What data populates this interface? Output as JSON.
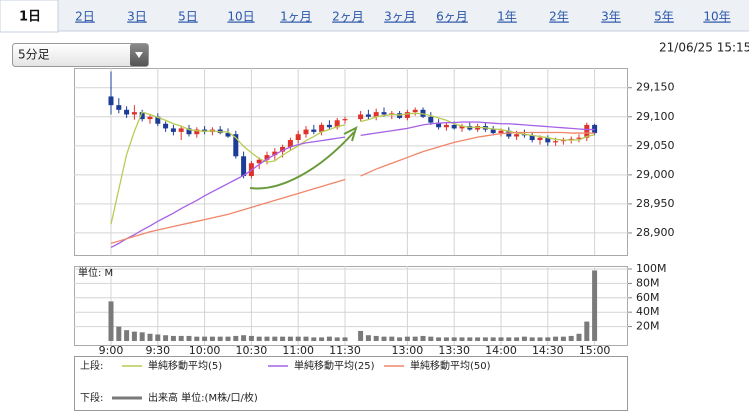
{
  "tabs": [
    "1日",
    "2日",
    "3日",
    "5日",
    "10日",
    "1ヶ月",
    "2ヶ月",
    "3ヶ月",
    "6ヶ月",
    "1年",
    "2年",
    "3年",
    "5年",
    "10年"
  ],
  "selected_tab": 0,
  "interval": "5分足",
  "timestamp": "21/06/25 15:15",
  "legend": {
    "upper_label": "上段:",
    "lower_label": "下段:"
  },
  "chart_data": [
    {
      "type": "candlestick",
      "categories": [
        "9:00",
        null,
        null,
        null,
        null,
        null,
        "9:30",
        null,
        null,
        null,
        null,
        null,
        "10:00",
        null,
        null,
        null,
        null,
        null,
        "10:30",
        null,
        null,
        null,
        null,
        null,
        "11:00",
        null,
        null,
        null,
        null,
        null,
        "11:30",
        null,
        null,
        null,
        null,
        null,
        null,
        null,
        "13:00",
        null,
        null,
        null,
        null,
        null,
        "13:30",
        null,
        null,
        null,
        null,
        null,
        "14:00",
        null,
        null,
        null,
        null,
        null,
        "14:30",
        null,
        null,
        null,
        null,
        null,
        "15:00"
      ],
      "open": [
        29135,
        29120,
        29112,
        29104,
        29108,
        29096,
        29100,
        29088,
        29080,
        29074,
        29080,
        29070,
        29078,
        29074,
        29078,
        29072,
        29070,
        29032,
        28998,
        29020,
        29026,
        29034,
        29040,
        29048,
        29060,
        29070,
        29078,
        29074,
        29086,
        29082,
        29094,
        null,
        29096,
        29104,
        29100,
        29108,
        29104,
        29106,
        29098,
        29108,
        29112,
        29100,
        29090,
        29082,
        29086,
        29080,
        29084,
        29078,
        29084,
        29078,
        29072,
        29076,
        29066,
        29070,
        29068,
        29060,
        29064,
        29056,
        29058,
        29060,
        29062,
        29064,
        29086
      ],
      "high": [
        29178,
        29132,
        29118,
        29120,
        29112,
        29104,
        29106,
        29092,
        29086,
        29084,
        29086,
        29082,
        29084,
        29082,
        29084,
        29080,
        29076,
        29040,
        29024,
        29030,
        29040,
        29046,
        29052,
        29064,
        29076,
        29084,
        29086,
        29090,
        29094,
        29098,
        29100,
        null,
        29110,
        29112,
        29114,
        29116,
        29110,
        29110,
        29112,
        29116,
        29116,
        29108,
        29096,
        29090,
        29092,
        29088,
        29090,
        29088,
        29090,
        29084,
        29080,
        29082,
        29076,
        29078,
        29074,
        29068,
        29068,
        29064,
        29064,
        29066,
        29070,
        29090,
        29088
      ],
      "low": [
        29104,
        29106,
        29098,
        29095,
        29092,
        29088,
        29084,
        29074,
        29068,
        29060,
        29066,
        29064,
        29070,
        29068,
        29070,
        29064,
        29028,
        28994,
        28994,
        29010,
        29018,
        29026,
        29030,
        29042,
        29054,
        29064,
        29070,
        29068,
        29078,
        29078,
        29088,
        null,
        29092,
        29096,
        29094,
        29100,
        29096,
        29096,
        29094,
        29102,
        29098,
        29086,
        29078,
        29076,
        29078,
        29074,
        29076,
        29074,
        29074,
        29068,
        29066,
        29062,
        29060,
        29064,
        29056,
        29052,
        29050,
        29050,
        29052,
        29054,
        29056,
        29058,
        29068
      ],
      "close": [
        29120,
        29112,
        29104,
        29108,
        29096,
        29100,
        29088,
        29080,
        29074,
        29080,
        29070,
        29078,
        29074,
        29078,
        29072,
        29066,
        29032,
        28998,
        29020,
        29026,
        29034,
        29040,
        29048,
        29060,
        29070,
        29078,
        29074,
        29086,
        29082,
        29094,
        29096,
        null,
        29104,
        29100,
        29108,
        29104,
        29106,
        29098,
        29108,
        29112,
        29100,
        29090,
        29082,
        29086,
        29080,
        29084,
        29078,
        29084,
        29078,
        29072,
        29076,
        29066,
        29070,
        29068,
        29060,
        29064,
        29056,
        29058,
        29060,
        29062,
        29064,
        29086,
        29072
      ],
      "up_color": "#e0322c",
      "down_color": "#1c3c98",
      "series": [
        {
          "name": "単純移動平均(5)",
          "color": "#b8cc52",
          "values": [
            28915,
            28975,
            29035,
            29075,
            29108,
            29104,
            29099,
            29094,
            29088,
            29084,
            29078,
            29076,
            29075,
            29076,
            29074,
            29074,
            29064,
            29049,
            29038,
            29028,
            29022,
            29024,
            29034,
            29042,
            29050,
            29059,
            29066,
            29074,
            29078,
            29083,
            29086,
            null,
            29092,
            29095,
            29100,
            29102,
            29104,
            29103,
            29105,
            29106,
            29105,
            29102,
            29098,
            29094,
            29088,
            29084,
            29082,
            29082,
            29081,
            29079,
            29078,
            29075,
            29072,
            29070,
            29068,
            29066,
            29064,
            29061,
            29060,
            29060,
            29060,
            29066,
            29069
          ]
        },
        {
          "name": "単純移動平均(25)",
          "color": "#a662e6",
          "values": [
            28875,
            28882,
            28890,
            28897,
            28905,
            28912,
            28920,
            28927,
            28934,
            28942,
            28949,
            28956,
            28964,
            28971,
            28978,
            28985,
            28992,
            28999,
            29008,
            29018,
            29027,
            29035,
            29042,
            29048,
            29052,
            29055,
            29057,
            29059,
            29061,
            29063,
            29065,
            null,
            29068,
            29070,
            29072,
            29074,
            29076,
            29078,
            29080,
            29083,
            29086,
            29088,
            29089,
            29090,
            29090,
            29091,
            29091,
            29091,
            29090,
            29089,
            29088,
            29088,
            29087,
            29086,
            29085,
            29084,
            29083,
            29082,
            29081,
            29080,
            29079,
            29078,
            29078
          ]
        },
        {
          "name": "単純移動平均(50)",
          "color": "#f0866a",
          "values": [
            28882,
            28886,
            28890,
            28894,
            28898,
            28902,
            28905,
            28908,
            28911,
            28914,
            28917,
            28920,
            28923,
            28926,
            28929,
            28932,
            28936,
            28940,
            28944,
            28948,
            28952,
            28956,
            28960,
            28964,
            28968,
            28972,
            28976,
            28980,
            28984,
            28988,
            28992,
            null,
            28998,
            29004,
            29010,
            29015,
            29020,
            29025,
            29030,
            29035,
            29040,
            29044,
            29048,
            29052,
            29056,
            29059,
            29062,
            29065,
            29067,
            29069,
            29071,
            29072,
            29073,
            29073,
            29073,
            29073,
            29073,
            29073,
            29073,
            29072,
            29072,
            29072,
            29072
          ]
        }
      ],
      "ylim": [
        28862,
        29184
      ],
      "yticks": [
        {
          "value": 28900,
          "label": "28,900"
        },
        {
          "value": 28950,
          "label": "28,950"
        },
        {
          "value": 29000,
          "label": "29,000"
        },
        {
          "value": 29050,
          "label": "29,050"
        },
        {
          "value": 29100,
          "label": "29,100"
        },
        {
          "value": 29150,
          "label": "29,150"
        }
      ],
      "grid": true
    },
    {
      "type": "bar",
      "name": "出来高 単位:(M株/口/枚)",
      "unit_label": "単位: M",
      "color": "#7a7a7a",
      "values": [
        55,
        20,
        15,
        13,
        12,
        10,
        9,
        8,
        7,
        7,
        7,
        6,
        6,
        6,
        6,
        6,
        7,
        8,
        7,
        6,
        6,
        6,
        6,
        6,
        6,
        6,
        5,
        5,
        6,
        5,
        5,
        null,
        14,
        8,
        7,
        6,
        6,
        5,
        6,
        6,
        7,
        6,
        5,
        5,
        5,
        5,
        5,
        5,
        5,
        5,
        5,
        5,
        5,
        6,
        5,
        5,
        5,
        6,
        6,
        7,
        10,
        27,
        98
      ],
      "ylim": [
        -5.6,
        104.2
      ],
      "yticks": [
        {
          "value": 20,
          "label": "20M"
        },
        {
          "value": 40,
          "label": "40M"
        },
        {
          "value": 60,
          "label": "60M"
        },
        {
          "value": 80,
          "label": "80M"
        },
        {
          "value": 100,
          "label": "100M"
        }
      ],
      "grid": true
    }
  ]
}
